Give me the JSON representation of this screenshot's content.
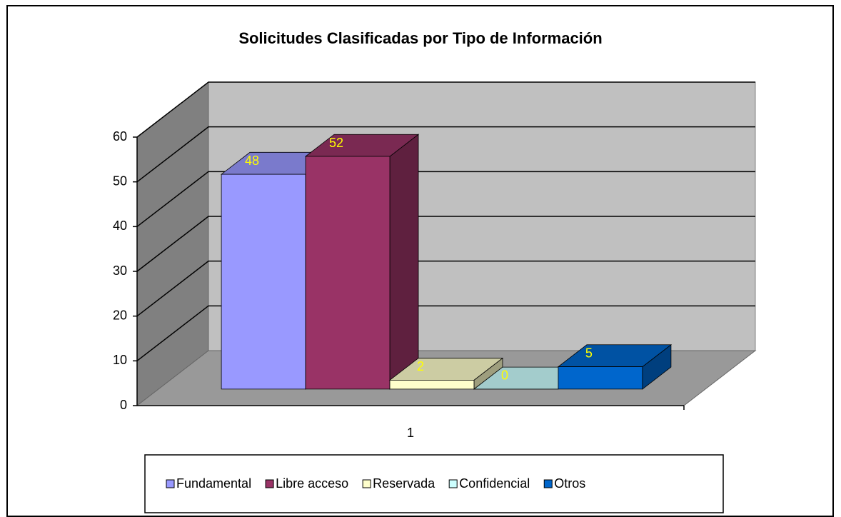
{
  "chart_data": {
    "type": "bar3d",
    "title": "Solicitudes Clasificadas por Tipo de Información",
    "categories": [
      "1"
    ],
    "series": [
      {
        "name": "Fundamental",
        "color": "#9999ff",
        "values": [
          48
        ]
      },
      {
        "name": "Libre acceso",
        "color": "#993366",
        "values": [
          52
        ]
      },
      {
        "name": "Reservada",
        "color": "#ffffcc",
        "values": [
          2
        ]
      },
      {
        "name": "Confidencial",
        "color": "#ccffff",
        "values": [
          0
        ]
      },
      {
        "name": "Otros",
        "color": "#0066cc",
        "values": [
          5
        ]
      }
    ],
    "ylim": [
      0,
      60
    ],
    "yticks": [
      0,
      10,
      20,
      30,
      40,
      50,
      60
    ],
    "grid": true,
    "legend": "bottom"
  }
}
